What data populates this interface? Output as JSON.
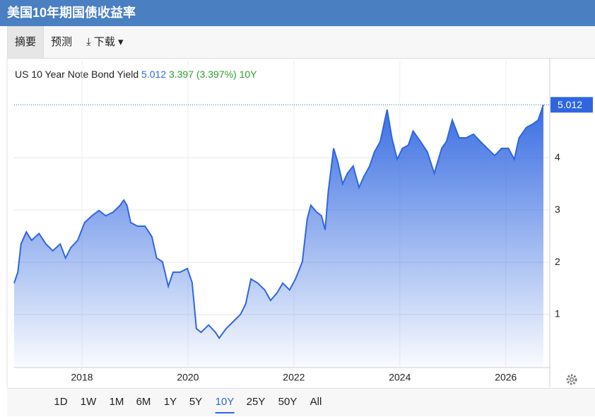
{
  "header": {
    "title": "美国10年期国债收益率"
  },
  "tabs": [
    "摘要",
    "预测",
    "下载"
  ],
  "chart_data": {
    "type": "area",
    "series": [
      {
        "name": "US 10 Year Note Bond Yield",
        "color": "#2f66e0",
        "values": [
          1.6,
          1.81,
          2.35,
          2.58,
          2.42,
          2.55,
          2.35,
          2.22,
          2.35,
          2.08,
          2.28,
          2.42,
          2.76,
          2.89,
          2.99,
          2.89,
          2.96,
          3.09,
          3.19,
          3.09,
          2.76,
          2.69,
          2.69,
          2.49,
          2.08,
          2.01,
          1.54,
          1.81,
          1.81,
          1.88,
          1.61,
          0.73,
          0.66,
          0.8,
          0.66,
          0.55,
          0.73,
          0.86,
          1.0,
          1.2,
          1.68,
          1.6,
          1.47,
          1.27,
          1.41,
          1.6,
          1.47,
          1.68,
          2.01,
          2.82,
          3.09,
          2.96,
          2.89,
          2.62,
          3.36,
          4.18,
          3.91,
          3.5,
          3.7,
          3.84,
          3.43,
          3.64,
          3.84,
          4.11,
          4.31,
          4.92,
          4.38,
          3.97,
          4.18,
          4.24,
          4.51,
          4.31,
          4.11,
          3.7,
          4.18,
          4.31,
          4.72,
          4.38,
          4.38,
          4.45,
          4.31,
          4.18,
          4.04,
          4.18,
          4.18,
          3.97,
          4.38,
          4.58,
          4.65,
          4.72,
          5.012
        ]
      }
    ],
    "x": [
      2016.72,
      2016.79,
      2016.85,
      2016.95,
      2017.05,
      2017.19,
      2017.32,
      2017.45,
      2017.59,
      2017.69,
      2017.79,
      2017.92,
      2018.05,
      2018.19,
      2018.32,
      2018.45,
      2018.59,
      2018.72,
      2018.79,
      2018.85,
      2018.92,
      2019.05,
      2019.19,
      2019.32,
      2019.41,
      2019.52,
      2019.63,
      2019.72,
      2019.85,
      2019.99,
      2020.08,
      2020.16,
      2020.25,
      2020.39,
      2020.52,
      2020.59,
      2020.72,
      2020.85,
      2020.99,
      2021.09,
      2021.19,
      2021.32,
      2021.45,
      2021.56,
      2021.68,
      2021.79,
      2021.92,
      2022.03,
      2022.16,
      2022.25,
      2022.32,
      2022.43,
      2022.52,
      2022.59,
      2022.65,
      2022.75,
      2022.83,
      2022.92,
      2023.01,
      2023.12,
      2023.23,
      2023.32,
      2023.43,
      2023.52,
      2023.63,
      2023.76,
      2023.85,
      2023.95,
      2024.05,
      2024.16,
      2024.25,
      2024.39,
      2024.52,
      2024.65,
      2024.79,
      2024.88,
      2024.99,
      2025.12,
      2025.25,
      2025.39,
      2025.52,
      2025.65,
      2025.79,
      2025.92,
      2026.05,
      2026.16,
      2026.25,
      2026.39,
      2026.52,
      2026.61,
      2026.71
    ],
    "change": 3.397,
    "change_label": "(3.397%)",
    "period": "10Y",
    "xlim": [
      2016.72,
      2026.83
    ],
    "xticks": [
      2018,
      2020,
      2022,
      2024,
      2026
    ],
    "ylim": [
      0,
      5.8
    ],
    "yticks": [
      1,
      2,
      3,
      4
    ],
    "grid": true
  },
  "range_buttons": [
    "1D",
    "1W",
    "1M",
    "6M",
    "1Y",
    "5Y",
    "10Y",
    "25Y",
    "50Y",
    "All"
  ]
}
